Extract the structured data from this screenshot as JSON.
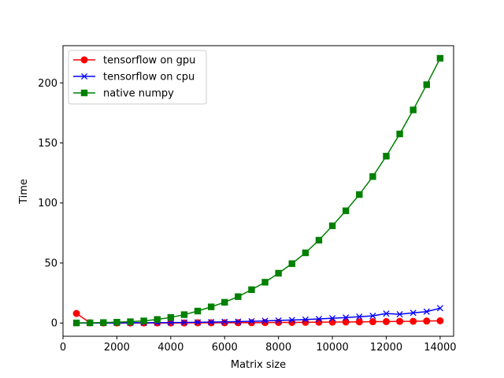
{
  "chart_data": {
    "type": "line",
    "xlabel": "Matrix size",
    "ylabel": "Time",
    "xlim": [
      0,
      14500
    ],
    "ylim": [
      -11,
      231
    ],
    "xticks": [
      0,
      2000,
      4000,
      6000,
      8000,
      10000,
      12000,
      14000
    ],
    "yticks": [
      0,
      50,
      100,
      150,
      200
    ],
    "grid": false,
    "legend_position": "top-left",
    "x": [
      500,
      1000,
      1500,
      2000,
      2500,
      3000,
      3500,
      4000,
      4500,
      5000,
      5500,
      6000,
      6500,
      7000,
      7500,
      8000,
      8500,
      9000,
      9500,
      10000,
      10500,
      11000,
      11500,
      12000,
      12500,
      13000,
      13500,
      14000
    ],
    "series": [
      {
        "name": "tensorflow on gpu",
        "color": "#ff0000",
        "marker": "circle",
        "values": [
          8,
          0.2,
          0.1,
          0.1,
          0.1,
          0.1,
          0.1,
          0.1,
          0.1,
          0.2,
          0.2,
          0.2,
          0.3,
          0.3,
          0.4,
          0.5,
          0.5,
          0.6,
          0.7,
          0.8,
          0.9,
          1.0,
          1.1,
          1.2,
          1.4,
          1.5,
          1.7,
          1.9
        ]
      },
      {
        "name": "tensorflow on cpu",
        "color": "#0000ff",
        "marker": "x",
        "values": [
          0.1,
          0.1,
          0.1,
          0.1,
          0.2,
          0.2,
          0.3,
          0.4,
          0.5,
          0.6,
          0.8,
          1.0,
          1.2,
          1.5,
          1.8,
          2.2,
          2.5,
          2.9,
          3.4,
          4.0,
          4.6,
          5.3,
          6.0,
          7.9,
          7.3,
          8.5,
          9.5,
          12.4
        ]
      },
      {
        "name": "native numpy",
        "color": "#008000",
        "marker": "square",
        "values": [
          0.1,
          0.2,
          0.4,
          0.7,
          1.1,
          1.8,
          3.0,
          4.7,
          7.0,
          10.0,
          13.5,
          17.3,
          22.0,
          27.8,
          34.0,
          41.5,
          49.5,
          58.5,
          69.0,
          81.0,
          93.5,
          107.0,
          122.0,
          139.0,
          157.5,
          177.5,
          198.5,
          220.5
        ]
      }
    ]
  }
}
